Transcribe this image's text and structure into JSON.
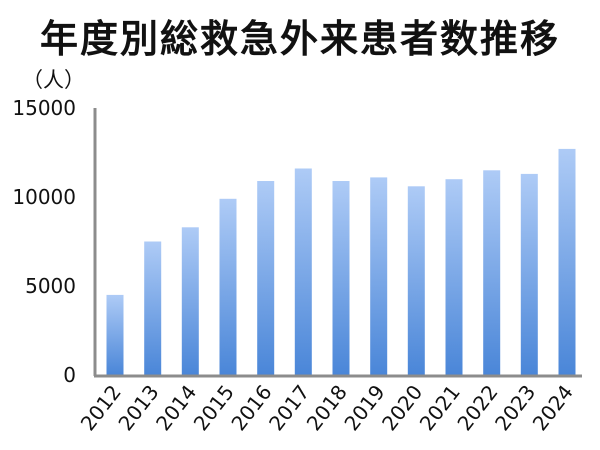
{
  "title": "年度別総救急外来患者数推移",
  "chart_data": {
    "type": "bar",
    "title": "年度別総救急外来患者数推移",
    "ylabel": "（人）",
    "xlabel": "",
    "categories": [
      "2012",
      "2013",
      "2014",
      "2015",
      "2016",
      "2017",
      "2018",
      "2019",
      "2020",
      "2021",
      "2022",
      "2023",
      "2024"
    ],
    "values": [
      4500,
      7500,
      8300,
      9900,
      10900,
      11600,
      10900,
      11100,
      10600,
      11000,
      11500,
      11300,
      12700
    ],
    "ylim": [
      0,
      15000
    ],
    "yticks": [
      0,
      5000,
      10000,
      15000
    ],
    "grid": false,
    "legend": "none",
    "colors": {
      "bar_top": "#aecbf6",
      "bar_bottom": "#4a86d8",
      "axis": "#8c8c8c"
    }
  }
}
